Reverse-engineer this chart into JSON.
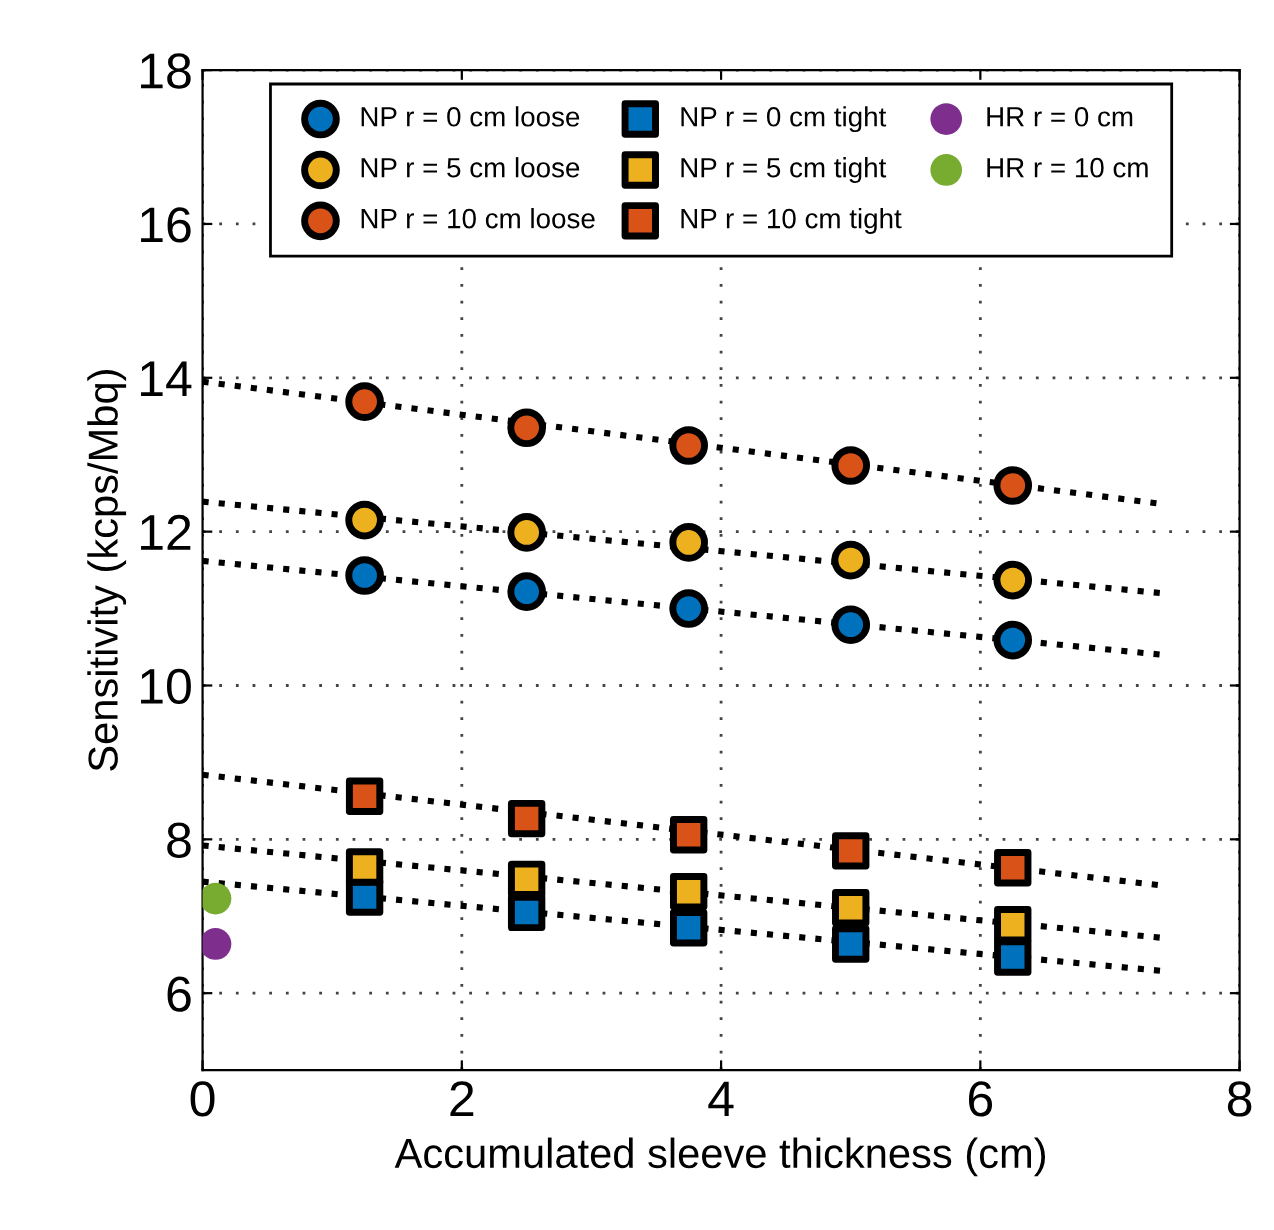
{
  "chart_data": {
    "type": "scatter",
    "xlabel": "Accumulated sleeve thickness (cm)",
    "ylabel": "Sensitivity (kcps/Mbq)",
    "xlim": [
      0,
      8
    ],
    "ylim": [
      5,
      18
    ],
    "xticks": [
      0,
      2,
      4,
      6,
      8
    ],
    "yticks": [
      6,
      8,
      10,
      12,
      14,
      16,
      18
    ],
    "grid": true,
    "legend": "top",
    "series": [
      {
        "name": "NP r = 0 cm loose",
        "color": "#0072bd",
        "marker": "circle",
        "x": [
          1.25,
          2.5,
          3.75,
          5,
          6.25
        ],
        "values": [
          11.43,
          11.22,
          11.0,
          10.79,
          10.59
        ]
      },
      {
        "name": "NP r = 5 cm loose",
        "color": "#edb120",
        "marker": "circle",
        "x": [
          1.25,
          2.5,
          3.75,
          5,
          6.25
        ],
        "values": [
          12.15,
          11.99,
          11.86,
          11.63,
          11.37
        ]
      },
      {
        "name": "NP r = 10 cm loose",
        "color": "#d95319",
        "marker": "circle",
        "x": [
          1.25,
          2.5,
          3.75,
          5,
          6.25
        ],
        "values": [
          13.69,
          13.35,
          13.12,
          12.86,
          12.6
        ]
      },
      {
        "name": "NP r = 0 cm tight",
        "color": "#0072bd",
        "marker": "square",
        "x": [
          1.25,
          2.5,
          3.75,
          5,
          6.25
        ],
        "values": [
          7.25,
          7.05,
          6.85,
          6.64,
          6.47
        ]
      },
      {
        "name": "NP r = 5 cm tight",
        "color": "#edb120",
        "marker": "square",
        "x": [
          1.25,
          2.5,
          3.75,
          5,
          6.25
        ],
        "values": [
          7.64,
          7.48,
          7.32,
          7.11,
          6.89
        ]
      },
      {
        "name": "NP r = 10 cm tight",
        "color": "#d95319",
        "marker": "square",
        "x": [
          1.25,
          2.5,
          3.75,
          5,
          6.25
        ],
        "values": [
          8.56,
          8.27,
          8.06,
          7.85,
          7.63
        ]
      },
      {
        "name": "HR r = 0 cm",
        "color": "#7e2f8e",
        "marker": "circle",
        "x": [
          0.1
        ],
        "values": [
          6.64
        ]
      },
      {
        "name": "HR r = 10 cm",
        "color": "#77ac30",
        "marker": "circle",
        "x": [
          0.1
        ],
        "values": [
          7.23
        ]
      },
      {
        "type": "line",
        "color": "#000000",
        "line_style": "dotted",
        "marker": "none",
        "x": [
          0,
          7.4
        ],
        "values": [
          11.62,
          10.4
        ]
      },
      {
        "type": "line",
        "color": "#000000",
        "line_style": "dotted",
        "marker": "none",
        "x": [
          0,
          7.4
        ],
        "values": [
          12.39,
          11.2
        ]
      },
      {
        "type": "line",
        "color": "#000000",
        "line_style": "dotted",
        "marker": "none",
        "x": [
          0,
          7.4
        ],
        "values": [
          13.95,
          12.36
        ]
      },
      {
        "type": "line",
        "color": "#000000",
        "line_style": "dotted",
        "marker": "none",
        "x": [
          0,
          7.4
        ],
        "values": [
          7.45,
          6.29
        ]
      },
      {
        "type": "line",
        "color": "#000000",
        "line_style": "dotted",
        "marker": "none",
        "x": [
          0,
          7.4
        ],
        "values": [
          7.92,
          6.72
        ]
      },
      {
        "type": "line",
        "color": "#000000",
        "line_style": "dotted",
        "marker": "none",
        "x": [
          0,
          7.4
        ],
        "values": [
          8.84,
          7.4
        ]
      }
    ]
  }
}
